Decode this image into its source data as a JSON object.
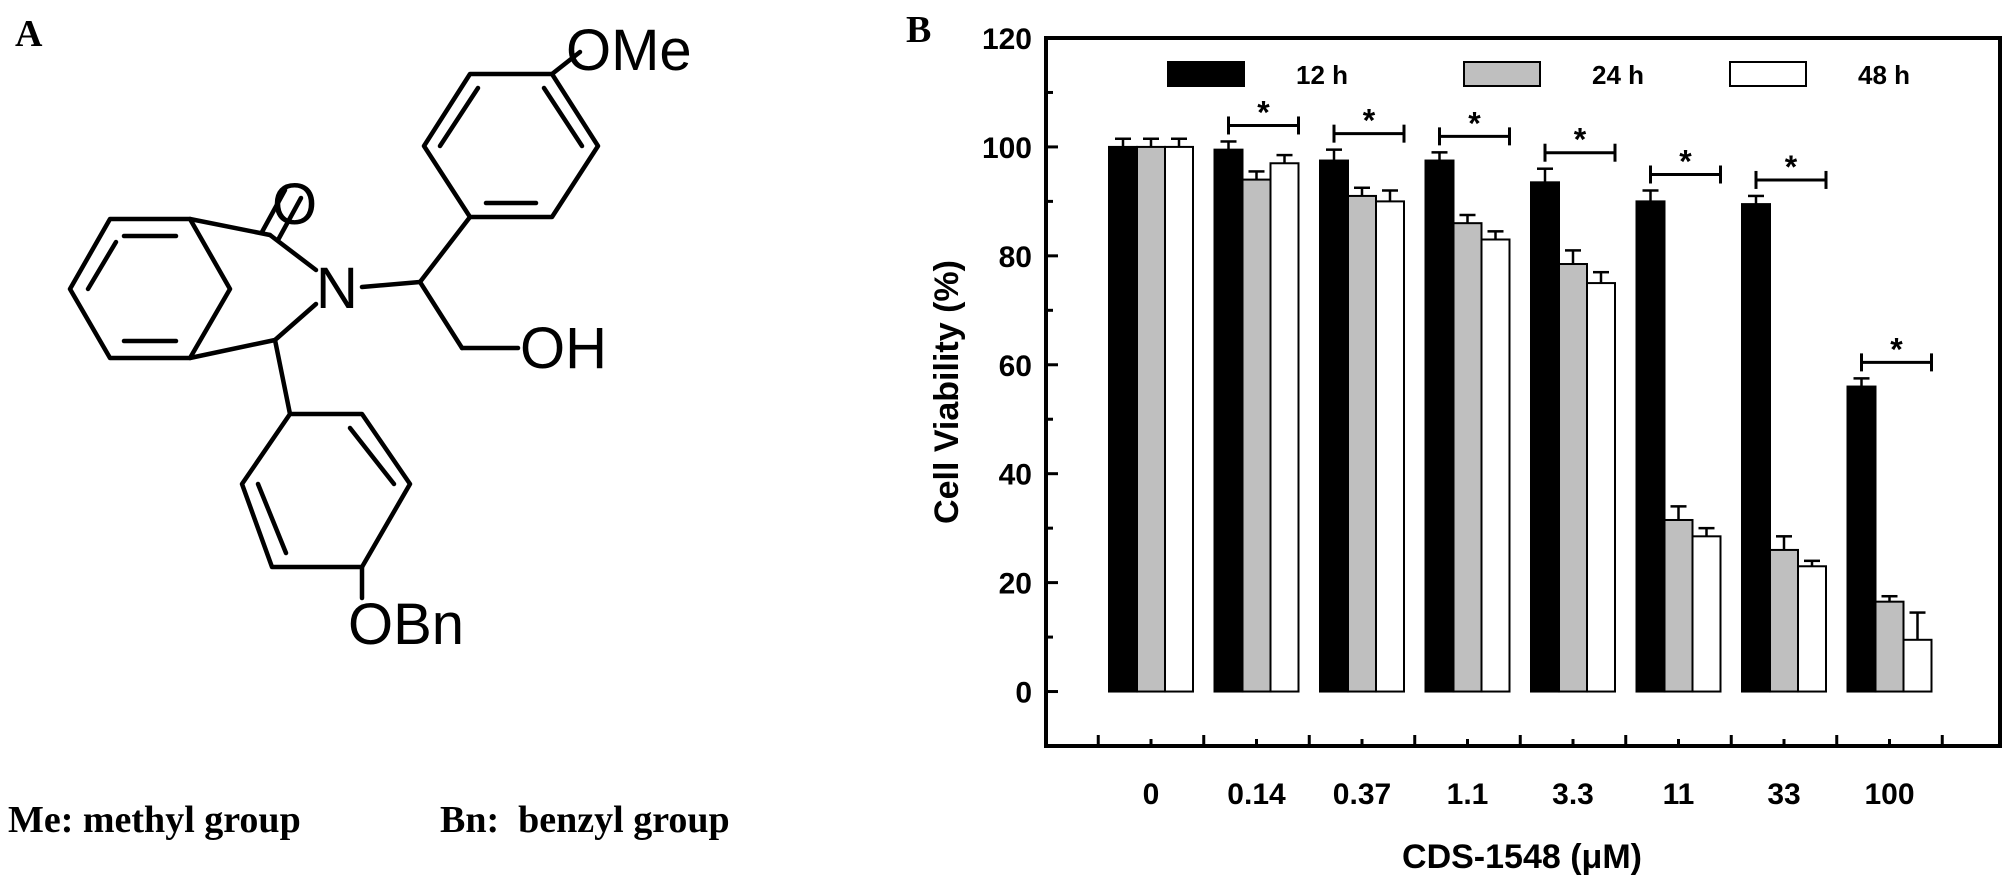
{
  "panel_a": {
    "letter": "A",
    "labels": {
      "ome": "OMe",
      "o": "O",
      "n": "N",
      "oh": "OH",
      "obn": "OBn"
    },
    "note_me": "Me: methyl group",
    "note_bn": "Bn:  benzyl group"
  },
  "panel_b": {
    "letter": "B"
  },
  "chart_data": {
    "type": "bar",
    "title": "",
    "xlabel": "CDS-1548 (μM)",
    "ylabel": "Cell Viability (%)",
    "ylim": [
      -10,
      120
    ],
    "yticks": [
      "0",
      "20",
      "40",
      "60",
      "80",
      "100",
      "120"
    ],
    "categories": [
      "0",
      "0.14",
      "0.37",
      "1.1",
      "3.3",
      "11",
      "33",
      "100"
    ],
    "series": [
      {
        "name": "12 h",
        "color": "#000000",
        "values": [
          100,
          99.5,
          97.5,
          97.5,
          93.5,
          90.0,
          89.5,
          56.0
        ],
        "errors": [
          1.5,
          1.5,
          2.0,
          1.5,
          2.5,
          2.0,
          1.5,
          1.5
        ]
      },
      {
        "name": "24 h",
        "color": "#bfbfbf",
        "values": [
          100,
          94.0,
          91.0,
          86.0,
          78.5,
          31.5,
          26.0,
          16.5
        ],
        "errors": [
          1.5,
          1.5,
          1.5,
          1.5,
          2.5,
          2.5,
          2.5,
          1.0
        ]
      },
      {
        "name": "48 h",
        "color": "#ffffff",
        "values": [
          100,
          97.0,
          90.0,
          83.0,
          75.0,
          28.5,
          23.0,
          9.5
        ],
        "errors": [
          1.5,
          1.5,
          2.0,
          1.5,
          2.0,
          1.5,
          1.0,
          5.0
        ]
      }
    ],
    "significance": {
      "marker": "*",
      "categories": [
        "0.14",
        "0.37",
        "1.1",
        "3.3",
        "11",
        "33",
        "100"
      ]
    },
    "legend": {
      "placement": "top",
      "orientation": "horizontal"
    },
    "grid": false
  }
}
